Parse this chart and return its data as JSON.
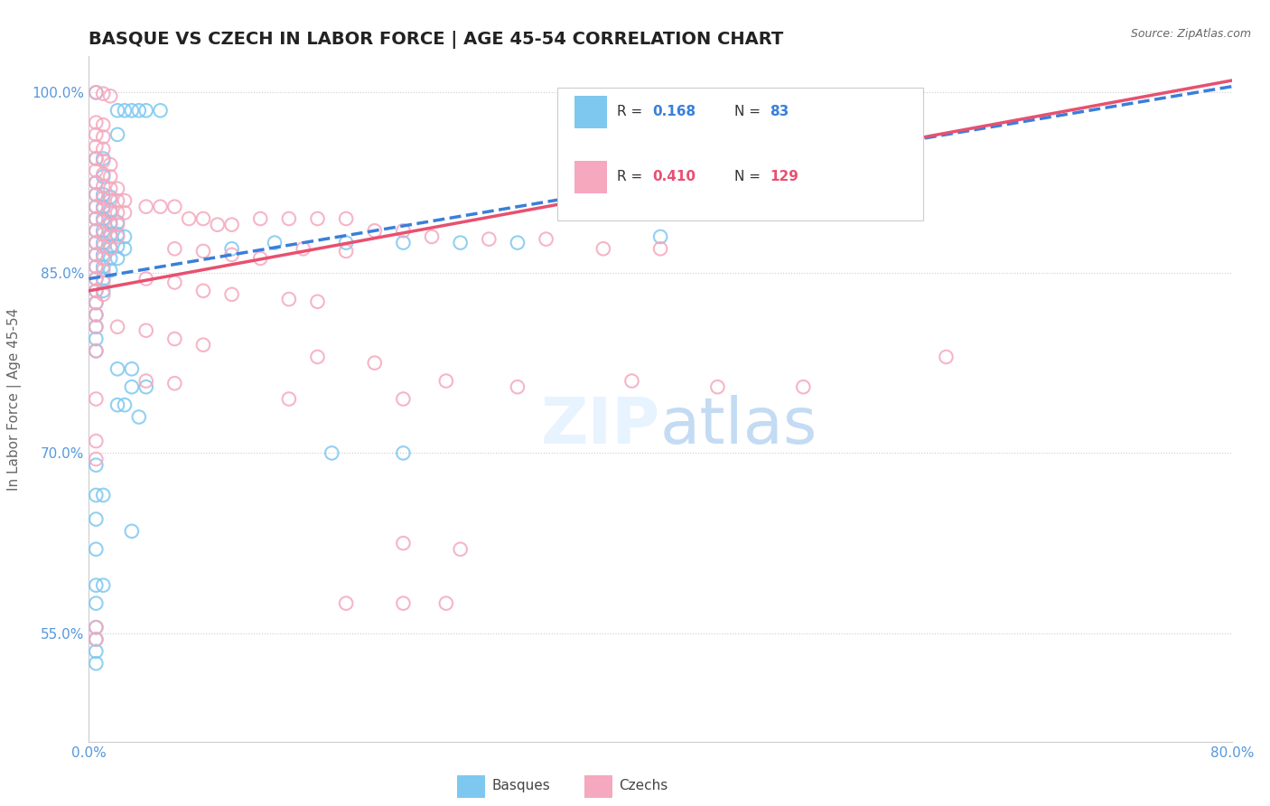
{
  "title": "BASQUE VS CZECH IN LABOR FORCE | AGE 45-54 CORRELATION CHART",
  "source": "Source: ZipAtlas.com",
  "ylabel": "In Labor Force | Age 45-54",
  "xmin": 0.0,
  "xmax": 0.8,
  "ymin": 0.46,
  "ymax": 1.03,
  "x_ticks": [
    0.0,
    0.8
  ],
  "x_tick_labels": [
    "0.0%",
    "80.0%"
  ],
  "y_ticks": [
    0.55,
    0.7,
    0.85,
    1.0
  ],
  "y_tick_labels": [
    "55.0%",
    "70.0%",
    "85.0%",
    "100.0%"
  ],
  "legend_r_basque": "0.168",
  "legend_n_basque": "83",
  "legend_r_czech": "0.410",
  "legend_n_czech": "129",
  "basque_color": "#7ec8f0",
  "czech_color": "#f5a8be",
  "trend_basque_color": "#3a7fd9",
  "trend_czech_color": "#e85070",
  "trend_basque_x0": 0.0,
  "trend_basque_y0": 0.845,
  "trend_basque_x1": 0.8,
  "trend_basque_y1": 1.005,
  "trend_czech_x0": 0.0,
  "trend_czech_y0": 0.835,
  "trend_czech_x1": 0.8,
  "trend_czech_y1": 1.01,
  "basque_scatter": [
    [
      0.005,
      1.0
    ],
    [
      0.02,
      0.985
    ],
    [
      0.025,
      0.985
    ],
    [
      0.03,
      0.985
    ],
    [
      0.035,
      0.985
    ],
    [
      0.04,
      0.985
    ],
    [
      0.05,
      0.985
    ],
    [
      0.02,
      0.965
    ],
    [
      0.005,
      0.945
    ],
    [
      0.01,
      0.945
    ],
    [
      0.005,
      0.925
    ],
    [
      0.01,
      0.93
    ],
    [
      0.005,
      0.915
    ],
    [
      0.01,
      0.915
    ],
    [
      0.015,
      0.913
    ],
    [
      0.005,
      0.905
    ],
    [
      0.01,
      0.905
    ],
    [
      0.015,
      0.902
    ],
    [
      0.005,
      0.895
    ],
    [
      0.01,
      0.895
    ],
    [
      0.015,
      0.892
    ],
    [
      0.02,
      0.892
    ],
    [
      0.005,
      0.885
    ],
    [
      0.01,
      0.885
    ],
    [
      0.015,
      0.882
    ],
    [
      0.02,
      0.882
    ],
    [
      0.025,
      0.88
    ],
    [
      0.005,
      0.875
    ],
    [
      0.01,
      0.875
    ],
    [
      0.015,
      0.872
    ],
    [
      0.02,
      0.872
    ],
    [
      0.025,
      0.87
    ],
    [
      0.005,
      0.865
    ],
    [
      0.01,
      0.865
    ],
    [
      0.015,
      0.862
    ],
    [
      0.02,
      0.862
    ],
    [
      0.005,
      0.855
    ],
    [
      0.01,
      0.855
    ],
    [
      0.015,
      0.852
    ],
    [
      0.005,
      0.845
    ],
    [
      0.01,
      0.845
    ],
    [
      0.005,
      0.835
    ],
    [
      0.01,
      0.835
    ],
    [
      0.005,
      0.825
    ],
    [
      0.005,
      0.815
    ],
    [
      0.005,
      0.805
    ],
    [
      0.005,
      0.795
    ],
    [
      0.005,
      0.785
    ],
    [
      0.02,
      0.77
    ],
    [
      0.03,
      0.77
    ],
    [
      0.03,
      0.755
    ],
    [
      0.04,
      0.755
    ],
    [
      0.02,
      0.74
    ],
    [
      0.025,
      0.74
    ],
    [
      0.035,
      0.73
    ],
    [
      0.005,
      0.69
    ],
    [
      0.005,
      0.665
    ],
    [
      0.01,
      0.665
    ],
    [
      0.005,
      0.645
    ],
    [
      0.03,
      0.635
    ],
    [
      0.005,
      0.62
    ],
    [
      0.005,
      0.59
    ],
    [
      0.01,
      0.59
    ],
    [
      0.005,
      0.575
    ],
    [
      0.005,
      0.555
    ],
    [
      0.005,
      0.545
    ],
    [
      0.005,
      0.535
    ],
    [
      0.005,
      0.525
    ],
    [
      0.17,
      0.7
    ],
    [
      0.22,
      0.7
    ],
    [
      0.1,
      0.87
    ],
    [
      0.13,
      0.875
    ],
    [
      0.18,
      0.875
    ],
    [
      0.22,
      0.875
    ],
    [
      0.26,
      0.875
    ],
    [
      0.3,
      0.875
    ],
    [
      0.4,
      0.88
    ]
  ],
  "czech_scatter": [
    [
      0.005,
      1.0
    ],
    [
      0.01,
      0.999
    ],
    [
      0.015,
      0.997
    ],
    [
      0.005,
      0.975
    ],
    [
      0.01,
      0.973
    ],
    [
      0.005,
      0.965
    ],
    [
      0.01,
      0.963
    ],
    [
      0.005,
      0.955
    ],
    [
      0.01,
      0.953
    ],
    [
      0.005,
      0.945
    ],
    [
      0.01,
      0.943
    ],
    [
      0.015,
      0.94
    ],
    [
      0.005,
      0.935
    ],
    [
      0.01,
      0.932
    ],
    [
      0.015,
      0.93
    ],
    [
      0.005,
      0.925
    ],
    [
      0.01,
      0.922
    ],
    [
      0.015,
      0.92
    ],
    [
      0.02,
      0.92
    ],
    [
      0.005,
      0.915
    ],
    [
      0.01,
      0.912
    ],
    [
      0.015,
      0.91
    ],
    [
      0.02,
      0.91
    ],
    [
      0.025,
      0.91
    ],
    [
      0.005,
      0.905
    ],
    [
      0.01,
      0.903
    ],
    [
      0.015,
      0.9
    ],
    [
      0.02,
      0.9
    ],
    [
      0.025,
      0.9
    ],
    [
      0.04,
      0.905
    ],
    [
      0.05,
      0.905
    ],
    [
      0.06,
      0.905
    ],
    [
      0.005,
      0.895
    ],
    [
      0.01,
      0.893
    ],
    [
      0.015,
      0.89
    ],
    [
      0.02,
      0.89
    ],
    [
      0.07,
      0.895
    ],
    [
      0.08,
      0.895
    ],
    [
      0.09,
      0.89
    ],
    [
      0.1,
      0.89
    ],
    [
      0.12,
      0.895
    ],
    [
      0.14,
      0.895
    ],
    [
      0.16,
      0.895
    ],
    [
      0.18,
      0.895
    ],
    [
      0.005,
      0.885
    ],
    [
      0.01,
      0.882
    ],
    [
      0.015,
      0.88
    ],
    [
      0.02,
      0.88
    ],
    [
      0.2,
      0.885
    ],
    [
      0.22,
      0.885
    ],
    [
      0.005,
      0.875
    ],
    [
      0.01,
      0.872
    ],
    [
      0.015,
      0.87
    ],
    [
      0.24,
      0.88
    ],
    [
      0.28,
      0.878
    ],
    [
      0.32,
      0.878
    ],
    [
      0.005,
      0.865
    ],
    [
      0.01,
      0.862
    ],
    [
      0.06,
      0.87
    ],
    [
      0.08,
      0.868
    ],
    [
      0.15,
      0.87
    ],
    [
      0.18,
      0.868
    ],
    [
      0.005,
      0.855
    ],
    [
      0.01,
      0.852
    ],
    [
      0.1,
      0.865
    ],
    [
      0.12,
      0.862
    ],
    [
      0.36,
      0.87
    ],
    [
      0.4,
      0.87
    ],
    [
      0.005,
      0.845
    ],
    [
      0.01,
      0.842
    ],
    [
      0.04,
      0.845
    ],
    [
      0.06,
      0.842
    ],
    [
      0.005,
      0.835
    ],
    [
      0.01,
      0.832
    ],
    [
      0.08,
      0.835
    ],
    [
      0.1,
      0.832
    ],
    [
      0.005,
      0.825
    ],
    [
      0.14,
      0.828
    ],
    [
      0.16,
      0.826
    ],
    [
      0.005,
      0.815
    ],
    [
      0.02,
      0.805
    ],
    [
      0.04,
      0.802
    ],
    [
      0.005,
      0.805
    ],
    [
      0.06,
      0.795
    ],
    [
      0.08,
      0.79
    ],
    [
      0.005,
      0.785
    ],
    [
      0.16,
      0.78
    ],
    [
      0.2,
      0.775
    ],
    [
      0.04,
      0.76
    ],
    [
      0.06,
      0.758
    ],
    [
      0.25,
      0.76
    ],
    [
      0.3,
      0.755
    ],
    [
      0.005,
      0.745
    ],
    [
      0.14,
      0.745
    ],
    [
      0.22,
      0.745
    ],
    [
      0.38,
      0.76
    ],
    [
      0.44,
      0.755
    ],
    [
      0.005,
      0.71
    ],
    [
      0.005,
      0.695
    ],
    [
      0.22,
      0.625
    ],
    [
      0.26,
      0.62
    ],
    [
      0.18,
      0.575
    ],
    [
      0.22,
      0.575
    ],
    [
      0.25,
      0.575
    ],
    [
      0.005,
      0.555
    ],
    [
      0.005,
      0.545
    ],
    [
      0.5,
      0.755
    ],
    [
      0.6,
      0.78
    ]
  ]
}
